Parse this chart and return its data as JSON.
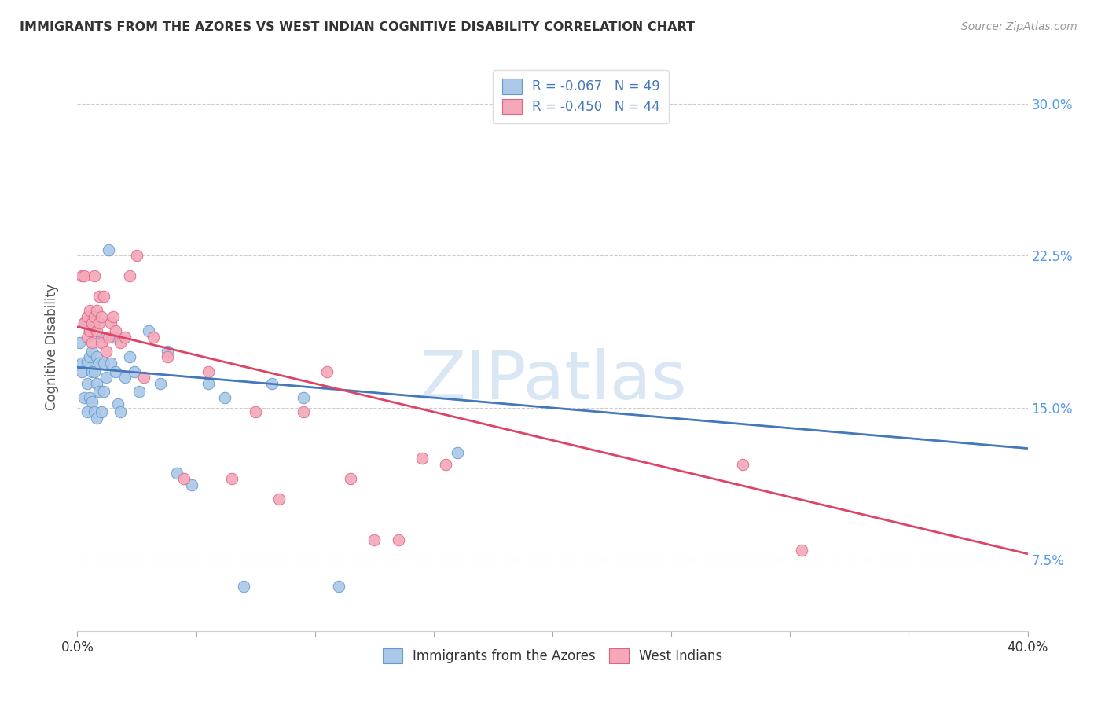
{
  "title": "IMMIGRANTS FROM THE AZORES VS WEST INDIAN COGNITIVE DISABILITY CORRELATION CHART",
  "source": "Source: ZipAtlas.com",
  "ylabel": "Cognitive Disability",
  "yticks": [
    0.075,
    0.15,
    0.225,
    0.3
  ],
  "ytick_labels": [
    "7.5%",
    "15.0%",
    "22.5%",
    "30.0%"
  ],
  "xlim": [
    0.0,
    0.4
  ],
  "ylim": [
    0.04,
    0.32
  ],
  "legend_R1": "R = -0.067",
  "legend_N1": "N = 49",
  "legend_R2": "R = -0.450",
  "legend_N2": "N = 44",
  "legend_label1": "Immigrants from the Azores",
  "legend_label2": "West Indians",
  "color_blue_fill": "#aac8e8",
  "color_pink_fill": "#f4a8b8",
  "color_blue_edge": "#6699cc",
  "color_pink_edge": "#dd6688",
  "color_blue_line": "#4477bb",
  "color_pink_line": "#dd4466",
  "color_dashed": "#aabbcc",
  "watermark_color": "#ccdff0",
  "blue_x": [
    0.001,
    0.002,
    0.002,
    0.003,
    0.003,
    0.004,
    0.004,
    0.004,
    0.005,
    0.005,
    0.005,
    0.006,
    0.006,
    0.006,
    0.007,
    0.007,
    0.007,
    0.008,
    0.008,
    0.008,
    0.009,
    0.009,
    0.01,
    0.01,
    0.011,
    0.011,
    0.012,
    0.013,
    0.014,
    0.015,
    0.016,
    0.017,
    0.018,
    0.02,
    0.022,
    0.024,
    0.026,
    0.03,
    0.035,
    0.038,
    0.042,
    0.048,
    0.055,
    0.062,
    0.07,
    0.082,
    0.095,
    0.11,
    0.16
  ],
  "blue_y": [
    0.182,
    0.172,
    0.168,
    0.192,
    0.155,
    0.173,
    0.162,
    0.148,
    0.188,
    0.175,
    0.155,
    0.178,
    0.168,
    0.153,
    0.192,
    0.168,
    0.148,
    0.175,
    0.162,
    0.145,
    0.172,
    0.158,
    0.185,
    0.148,
    0.172,
    0.158,
    0.165,
    0.228,
    0.172,
    0.185,
    0.168,
    0.152,
    0.148,
    0.165,
    0.175,
    0.168,
    0.158,
    0.188,
    0.162,
    0.178,
    0.118,
    0.112,
    0.162,
    0.155,
    0.062,
    0.162,
    0.155,
    0.062,
    0.128
  ],
  "pink_x": [
    0.002,
    0.003,
    0.003,
    0.004,
    0.004,
    0.005,
    0.005,
    0.006,
    0.006,
    0.007,
    0.007,
    0.008,
    0.008,
    0.009,
    0.009,
    0.01,
    0.01,
    0.011,
    0.012,
    0.013,
    0.014,
    0.015,
    0.016,
    0.018,
    0.02,
    0.022,
    0.025,
    0.028,
    0.032,
    0.038,
    0.045,
    0.055,
    0.065,
    0.075,
    0.085,
    0.095,
    0.105,
    0.115,
    0.125,
    0.135,
    0.145,
    0.155,
    0.28,
    0.305
  ],
  "pink_y": [
    0.215,
    0.215,
    0.192,
    0.195,
    0.185,
    0.198,
    0.188,
    0.192,
    0.182,
    0.215,
    0.195,
    0.198,
    0.188,
    0.205,
    0.192,
    0.195,
    0.182,
    0.205,
    0.178,
    0.185,
    0.192,
    0.195,
    0.188,
    0.182,
    0.185,
    0.215,
    0.225,
    0.165,
    0.185,
    0.175,
    0.115,
    0.168,
    0.115,
    0.148,
    0.105,
    0.148,
    0.168,
    0.115,
    0.085,
    0.085,
    0.125,
    0.122,
    0.122,
    0.08
  ]
}
